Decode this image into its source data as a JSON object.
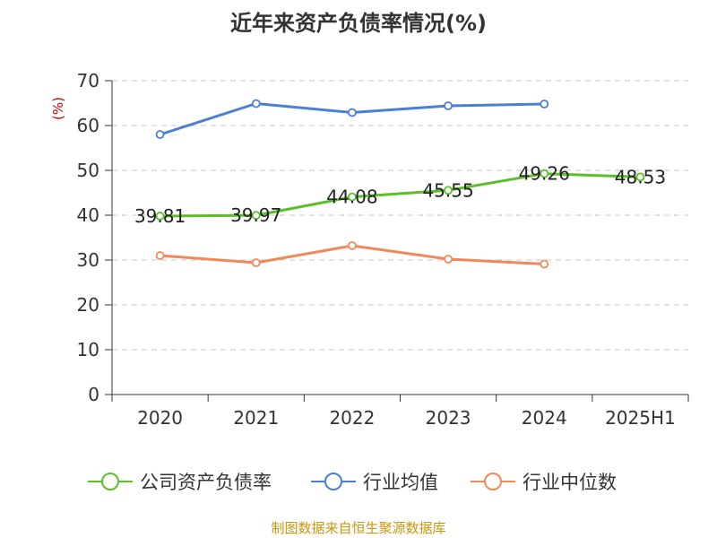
{
  "title": "近年来资产负债率情况(%)",
  "source": "制图数据来自恒生聚源数据库",
  "chart_data": {
    "type": "line",
    "title": "近年来资产负债率情况(%)",
    "ylabel": "(%)",
    "xlabel": "",
    "ylim": [
      0,
      70
    ],
    "yticks": [
      0,
      10,
      20,
      30,
      40,
      50,
      60,
      70
    ],
    "categories": [
      "2020",
      "2021",
      "2022",
      "2023",
      "2024",
      "2025H1"
    ],
    "grid": true,
    "legend_position": "bottom",
    "series": [
      {
        "name": "公司资产负债率",
        "color": "#5cbf2a",
        "values": [
          39.81,
          39.97,
          44.08,
          45.55,
          49.26,
          48.53
        ],
        "labels": [
          "39.81",
          "39.97",
          "44.08",
          "45.55",
          "49.26",
          "48.53"
        ]
      },
      {
        "name": "行业均值",
        "color": "#4a7fd4",
        "values": [
          58.0,
          64.9,
          62.9,
          64.4,
          64.8,
          null
        ]
      },
      {
        "name": "行业中位数",
        "color": "#f0895a",
        "values": [
          31.0,
          29.4,
          33.2,
          30.2,
          29.1,
          null
        ]
      }
    ]
  }
}
